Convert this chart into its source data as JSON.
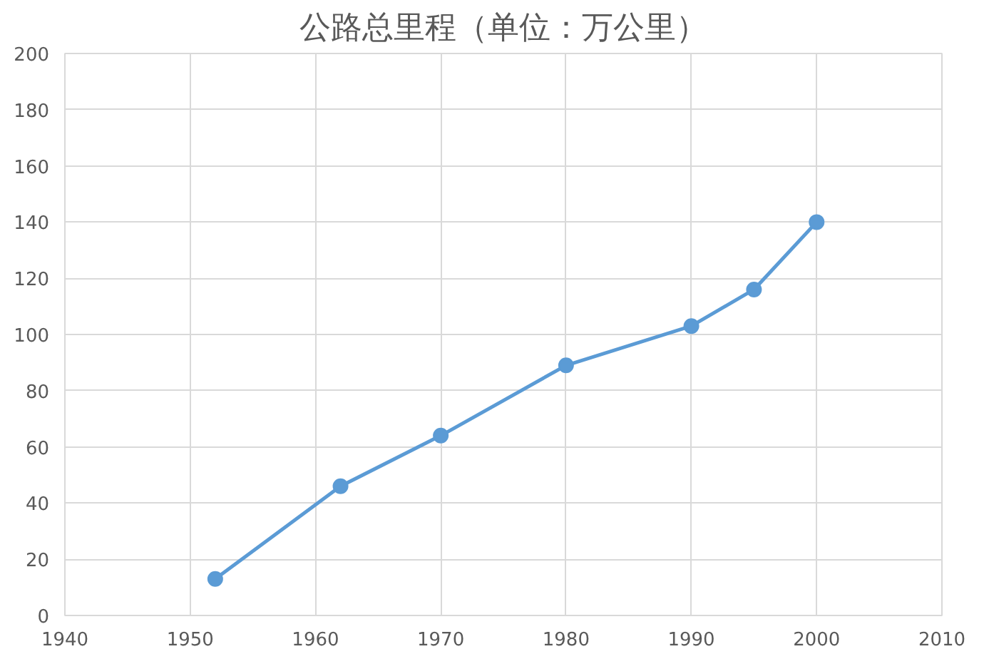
{
  "chart_data": {
    "type": "line",
    "title": "公路总里程（单位：万公里）",
    "x": [
      1952,
      1962,
      1970,
      1980,
      1990,
      1995,
      2000
    ],
    "series": [
      {
        "color": "#5b9bd5",
        "values": [
          13,
          46,
          64,
          89,
          103,
          116,
          140
        ]
      }
    ],
    "marker": "circle",
    "line_style": "solid",
    "xlim": [
      1940,
      2010
    ],
    "xticks": [
      1940,
      1950,
      1960,
      1970,
      1980,
      1990,
      2000,
      2010
    ],
    "ylim": [
      0,
      200
    ],
    "yticks": [
      0,
      20,
      40,
      60,
      80,
      100,
      120,
      140,
      160,
      180,
      200
    ],
    "grid": true
  }
}
